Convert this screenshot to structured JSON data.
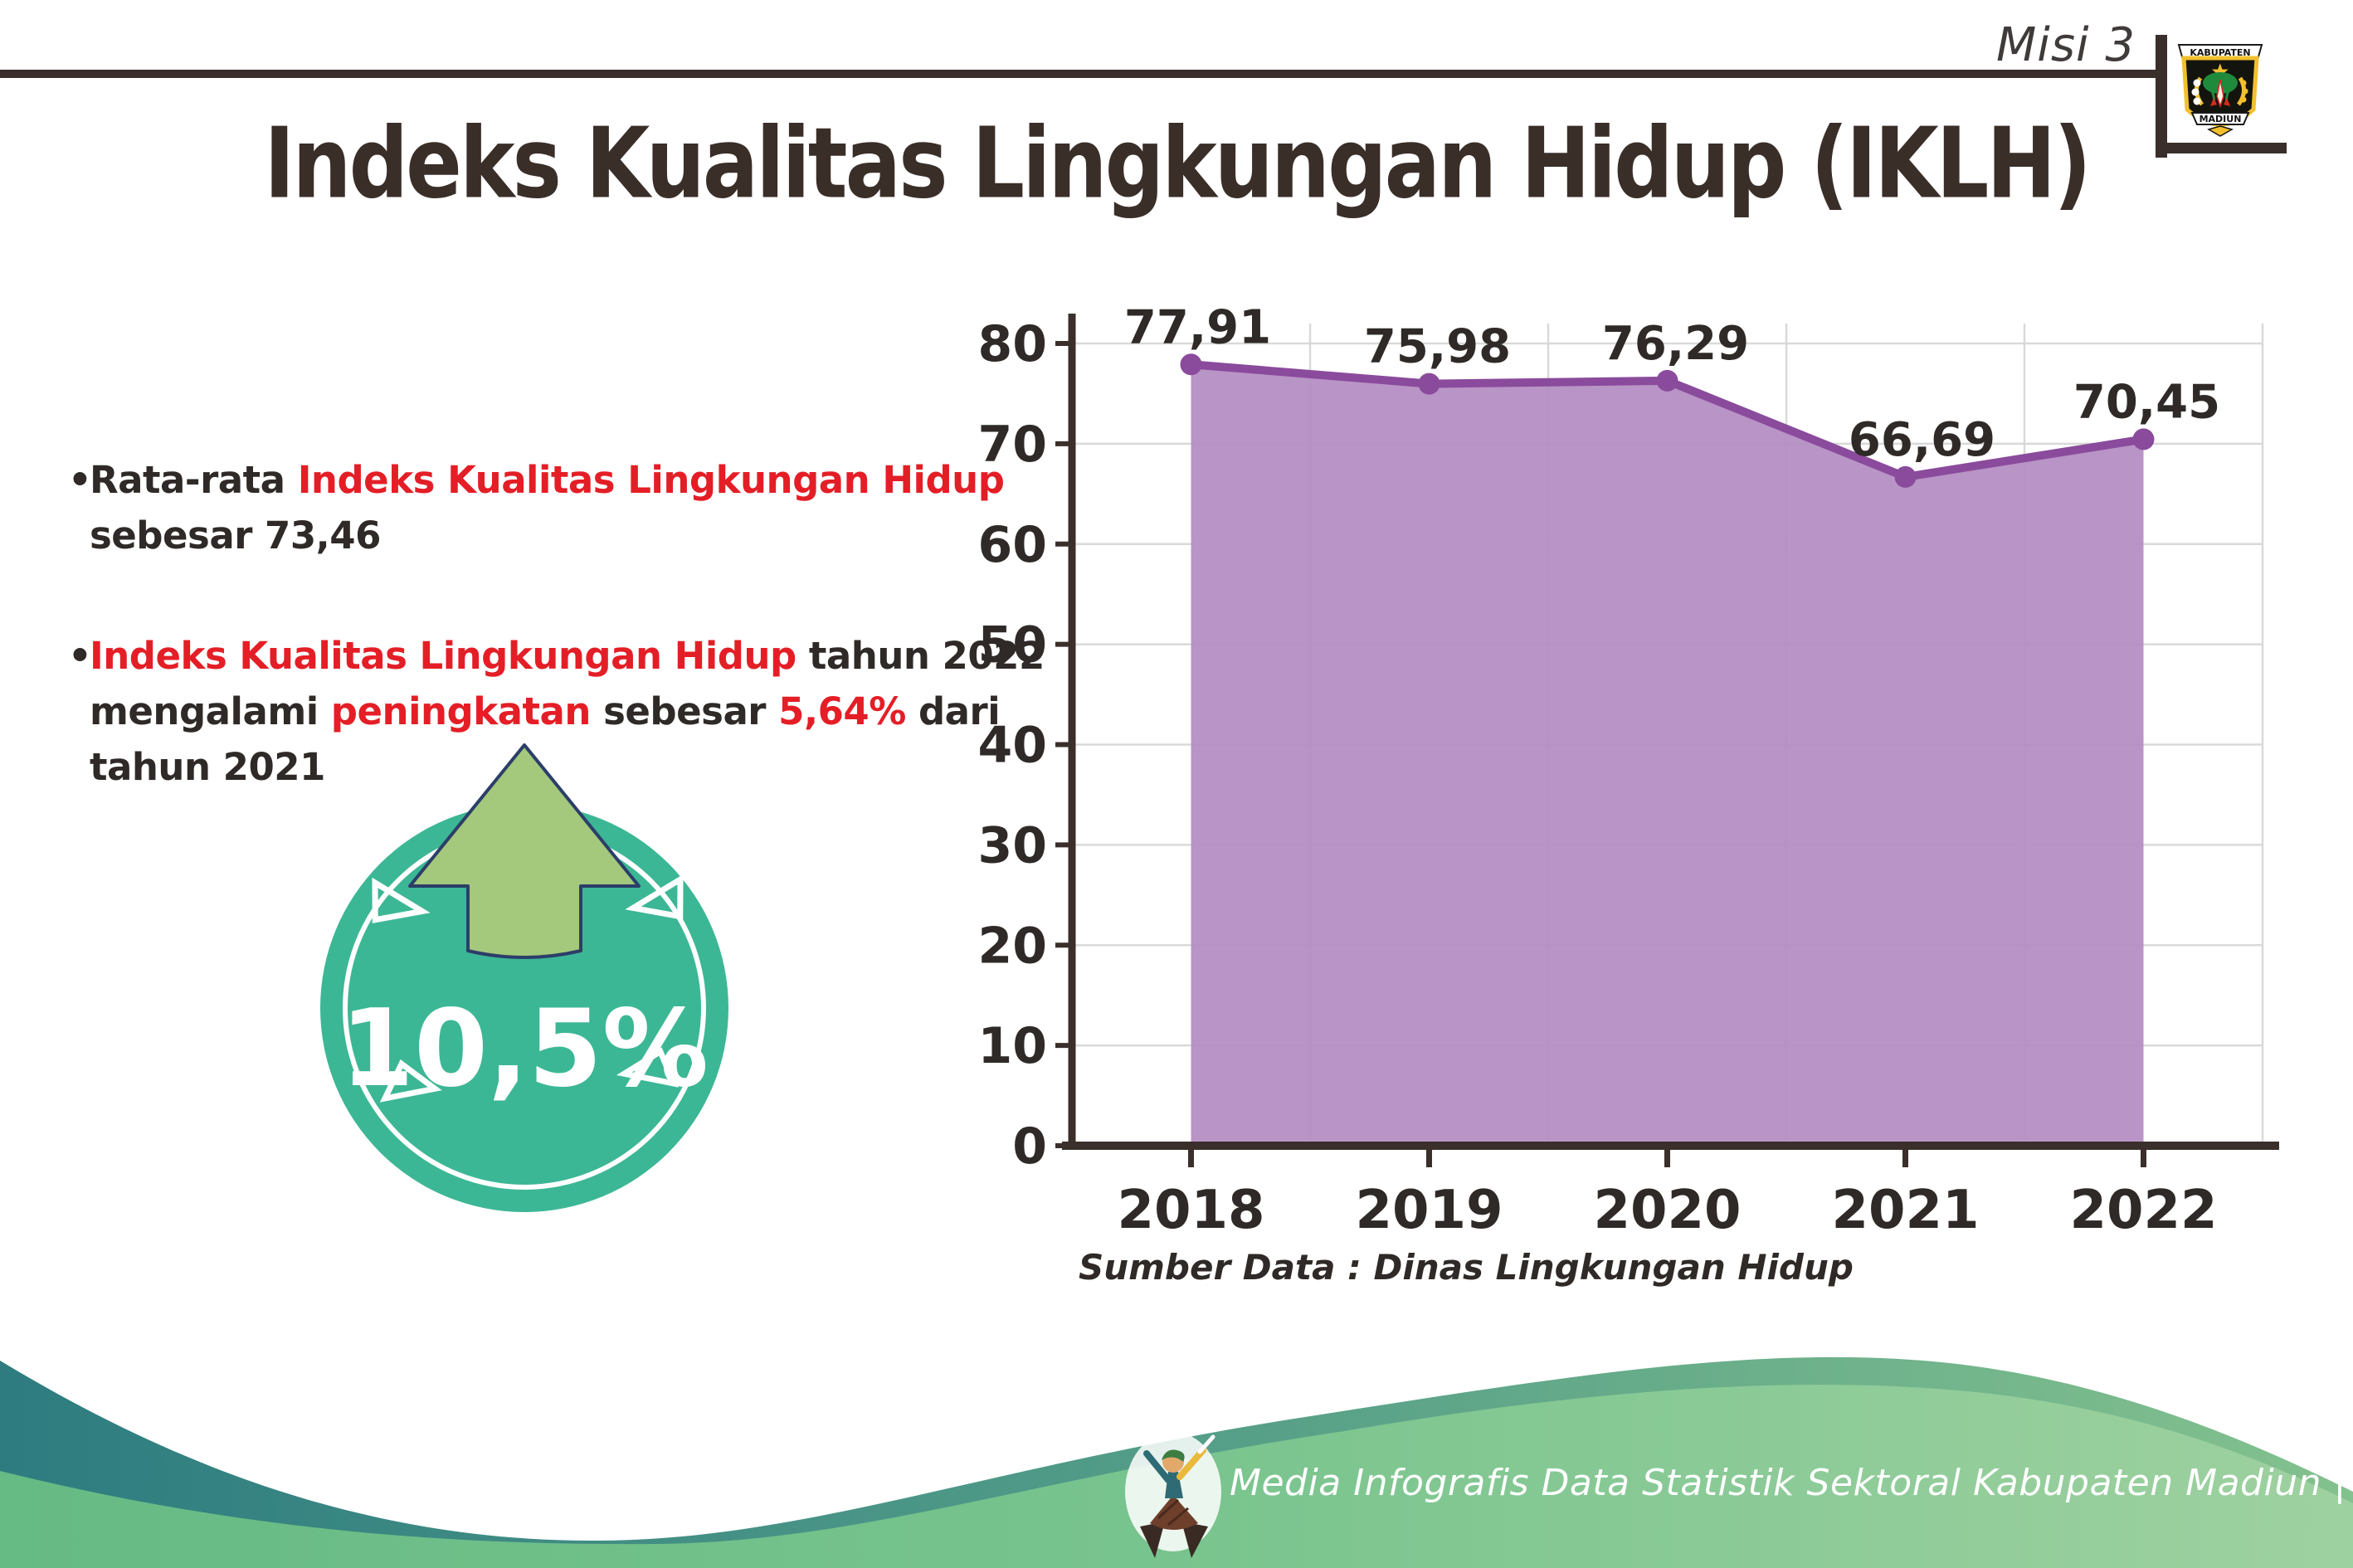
{
  "header": {
    "title": "Indeks Kualitas Lingkungan Hidup (IKLH)",
    "mission_label": "Misi 3"
  },
  "logo": {
    "top_text": "KABUPATEN",
    "bottom_text": "MADIUN"
  },
  "bullets": [
    {
      "lines": [
        [
          {
            "t": "Rata-rata ",
            "c": "d"
          },
          {
            "t": "Indeks Kualitas Lingkungan Hidup",
            "c": "r"
          }
        ],
        [
          {
            "t": "sebesar 73,46",
            "c": "d"
          }
        ]
      ]
    },
    {
      "lines": [
        [
          {
            "t": "Indeks Kualitas Lingkungan Hidup",
            "c": "r"
          },
          {
            "t": " tahun 2022",
            "c": "d"
          }
        ],
        [
          {
            "t": "mengalami ",
            "c": "d"
          },
          {
            "t": "peningkatan",
            "c": "r"
          },
          {
            "t": " sebesar ",
            "c": "d"
          },
          {
            "t": "5,64%",
            "c": "r"
          },
          {
            "t": " dari",
            "c": "d"
          }
        ],
        [
          {
            "t": "tahun 2021",
            "c": "d"
          }
        ]
      ]
    }
  ],
  "badge": {
    "value": "10,5%"
  },
  "chart_data": {
    "type": "area",
    "title": "",
    "categories": [
      "2018",
      "2019",
      "2020",
      "2021",
      "2022"
    ],
    "series": [
      {
        "name": "IKLH",
        "values": [
          77.91,
          75.98,
          76.29,
          66.69,
          70.45
        ]
      }
    ],
    "value_labels": [
      "77,91",
      "75,98",
      "76,29",
      "66,69",
      "70,45"
    ],
    "yticks": [
      "0",
      "10",
      "20",
      "30",
      "40",
      "50",
      "60",
      "70",
      "80"
    ],
    "ylim": [
      0,
      80
    ],
    "grid": true,
    "legend": false,
    "source_note": "Sumber Data : Dinas Lingkungan Hidup"
  },
  "footer": {
    "text": "Media Infografis Data Statistik Sektoral Kabupaten Madiun |"
  },
  "colors": {
    "dark_text": "#2f2a27",
    "red_text": "#e41e26",
    "title_text": "#3a2e29",
    "axis": "#3a2f2b",
    "gridline": "#d9d9d9",
    "line_purple": "#8a4b9c",
    "area_purple": "#b48cc2",
    "badge_teal": "#3cb795",
    "arrow_green": "#a4c87c",
    "arrow_outline": "#2c3e69",
    "wave_teal": "#2e7c80",
    "wave_green": "#9ed1a0",
    "footer_text": "#ffffff"
  }
}
